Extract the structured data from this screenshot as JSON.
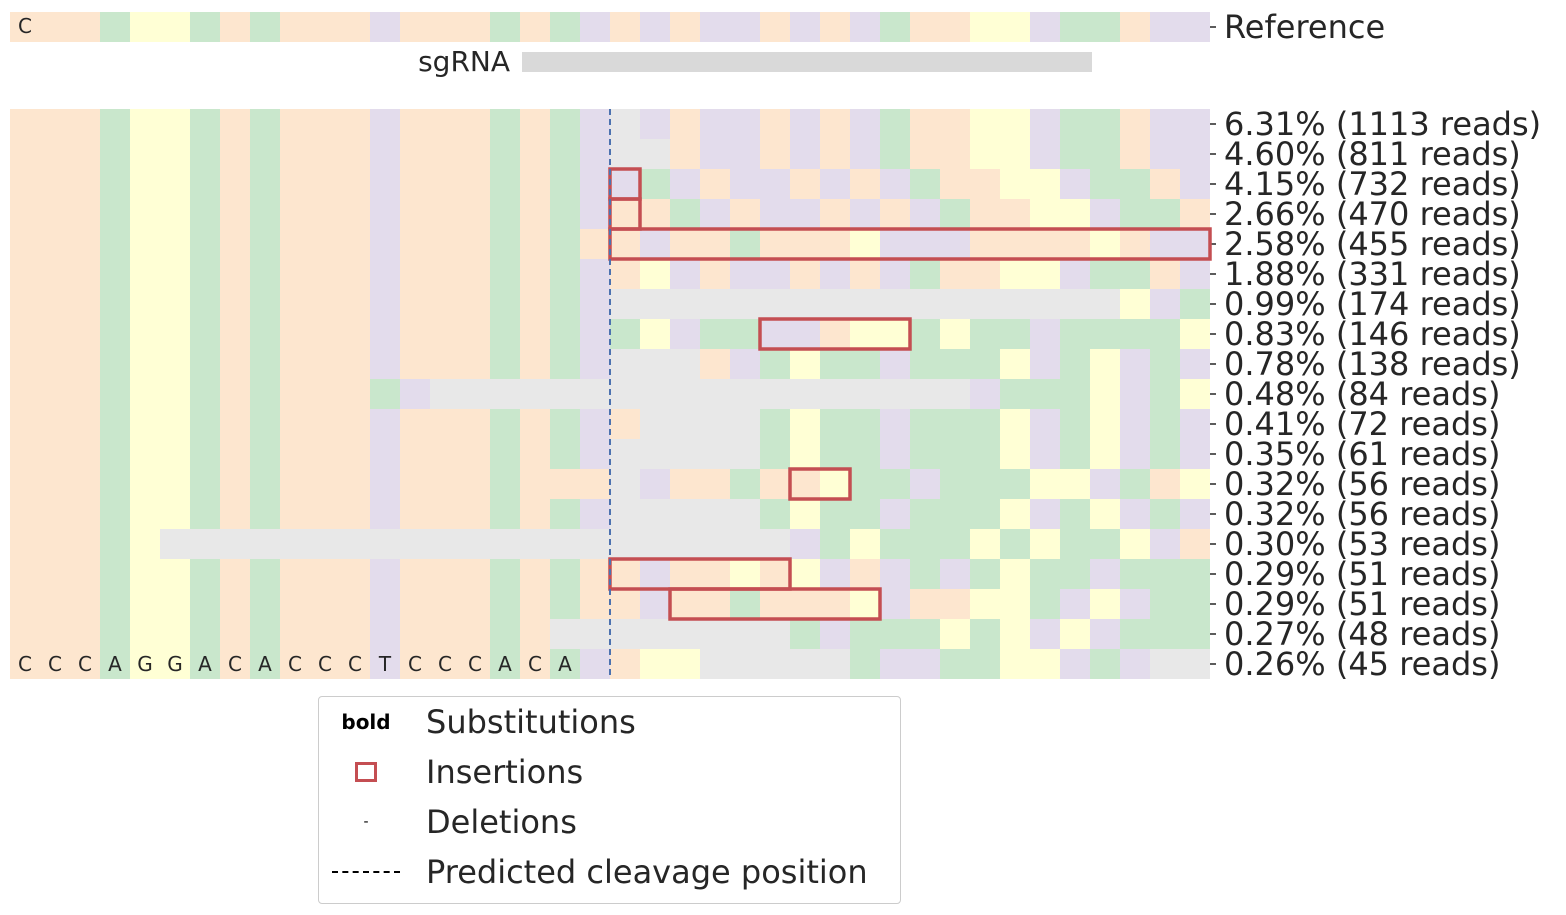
{
  "chart_data": {
    "type": "heatmap",
    "reference": {
      "label": "Reference",
      "sequence": "CCCAGGACACCCTCCCACATCTCTTCTCTACCGGTAACTTCTT",
      "visible_letters": "C"
    },
    "sgRNA_label": "sgRNA",
    "sgRNA_span": [
      17,
      36
    ],
    "cleavage_position": 20,
    "rows": [
      {
        "label": "6.31% (1113 reads)",
        "percent": 6.31,
        "reads": 1113,
        "seq": "CCCAGGACACCCTCCCACAT-TCTTCTCTACCGGTAACTTCTT",
        "insertions": []
      },
      {
        "label": "4.60% (811 reads)",
        "percent": 4.6,
        "reads": 811,
        "seq": "CCCAGGACACCCTCCCACAT--CTTCTCTACCGGTAACTTCTT",
        "insertions": []
      },
      {
        "label": "4.15% (732 reads)",
        "percent": 4.15,
        "reads": 732,
        "seq": "CCCAGGACACCCTCCCACATTATCTTCTCTACCGGTAACTTCT",
        "insertions": [
          [
            20,
            20
          ]
        ]
      },
      {
        "label": "2.66% (470 reads)",
        "percent": 2.66,
        "reads": 470,
        "seq": "CCCAGGACACCCTCCCACATCCATCTTCTCTACCGGTAACTTC",
        "insertions": [
          [
            20,
            20
          ]
        ]
      },
      {
        "label": "2.58% (455 reads)",
        "percent": 2.58,
        "reads": 455,
        "seq": "CCCAGGACACCCTCCCACACCTCCACCCGTTTCCCCGCTTTTC",
        "insertions": [
          [
            20,
            39
          ]
        ]
      },
      {
        "label": "1.88% (331 reads)",
        "percent": 1.88,
        "reads": 331,
        "seq": "CCCAGGACACCCTCCCACATCGTCTTCTCTACCGGTAACTTCT",
        "insertions": []
      },
      {
        "label": "0.99% (174 reads)",
        "percent": 0.99,
        "reads": 174,
        "seq": "CCCAGGACACCCTCCCACAT-----------------GTAT",
        "insertions": []
      },
      {
        "label": "0.83% (146 reads)",
        "percent": 0.83,
        "reads": 146,
        "seq": "CCCAGGACACCCTCCCACATAGTAATTCGGAGAATAAAAG",
        "insertions": [
          [
            25,
            29
          ]
        ]
      },
      {
        "label": "0.78% (138 reads)",
        "percent": 0.78,
        "reads": 138,
        "seq": "CCCAGGACACCCTCCCACAT---CTAGAATAAAGTAGTAT",
        "insertions": []
      },
      {
        "label": "0.48% (84 reads)",
        "percent": 0.48,
        "reads": 84,
        "seq": "CCCAGGACACCCAT------------------TAAAGTAGTAT",
        "insertions": []
      },
      {
        "label": "0.41% (72 reads)",
        "percent": 0.41,
        "reads": 72,
        "seq": "CCCAGGACACCCTCCCACATC----AGAATAAAGTAGTAT",
        "insertions": []
      },
      {
        "label": "0.35% (61 reads)",
        "percent": 0.35,
        "reads": 61,
        "seq": "CCCAGGACACCCTCCCACAT-----AGAATAAAGTAGTAT",
        "insertions": []
      },
      {
        "label": "0.32% (56 reads)",
        "percent": 0.32,
        "reads": 56,
        "seq": "CCCAGGACACCCTCCCACCC-TCCACCGAATAAAGGTACG",
        "insertions": [
          [
            26,
            27
          ]
        ]
      },
      {
        "label": "0.32% (56 reads)",
        "percent": 0.32,
        "reads": 56,
        "seq": "CCCAGGACACCCTCCCACAT-----AGAATAAAGTAGTAT",
        "insertions": []
      },
      {
        "label": "0.30% (53 reads)",
        "percent": 0.3,
        "reads": 53,
        "seq": "CCCAG---------------------TAGAAAGAGAAGT",
        "insertions": []
      },
      {
        "label": "0.29% (51 reads)",
        "percent": 0.29,
        "reads": 51,
        "seq": "CCCAGGACACCCTCCCACACCTCCGCGTCTATAGAATAAAG",
        "insertions": [
          [
            20,
            25
          ]
        ]
      },
      {
        "label": "0.29% (51 reads)",
        "percent": 0.29,
        "reads": 51,
        "seq": "CCCAGGACACCCTCCCACACCTCCACCCGTCCGGATGTAA",
        "insertions": [
          [
            22,
            28
          ]
        ]
      },
      {
        "label": "0.27% (48 reads)",
        "percent": 0.27,
        "reads": 48,
        "seq": "CCCAGGACACCCTCCCAC--------ATAAAGAGTGTAAA",
        "insertions": []
      },
      {
        "label": "0.26% (45 reads)",
        "percent": 0.26,
        "reads": 45,
        "seq": "CCCAGGACACCCTCCCACATCGG-----ATTAAGGTAT---",
        "insertions": []
      }
    ],
    "last_row_letters": "CCCAGGACACCCTCCCACA",
    "nucleotide_colors": {
      "A": "#c9e7cc",
      "C": "#fde6cf",
      "G": "#ffffd5",
      "T": "#e3dcec",
      "-": "#e8e8e8"
    },
    "insertion_color": "#c44e52",
    "sgRNA_color": "#d9d9d9",
    "cleavage_line_color": "#4c72b0",
    "legend": {
      "entries": [
        {
          "key": "bold",
          "label": "Substitutions"
        },
        {
          "key": "",
          "label": "Insertions"
        },
        {
          "key": "-",
          "label": "Deletions"
        },
        {
          "key": "",
          "label": "Predicted cleavage position"
        }
      ]
    }
  }
}
